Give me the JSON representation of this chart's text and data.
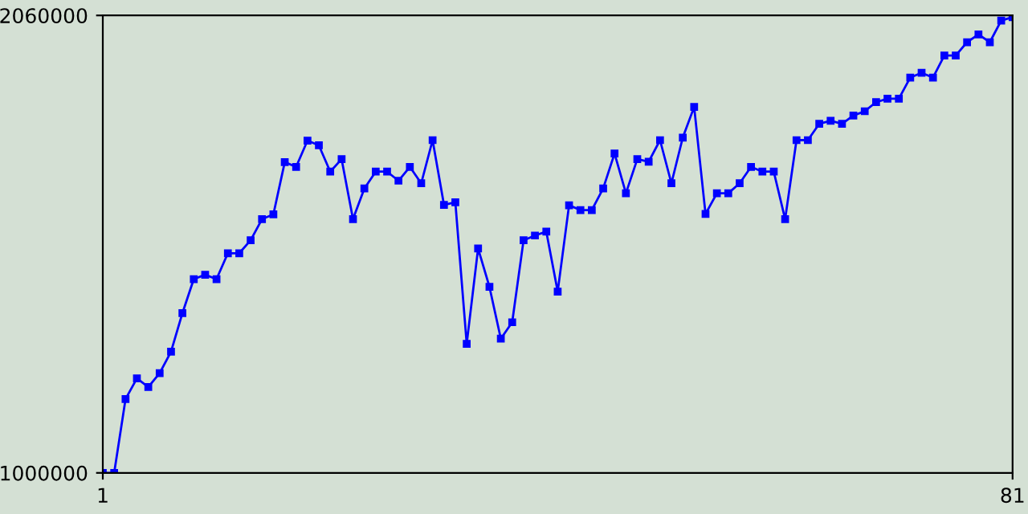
{
  "chart_data": {
    "type": "line",
    "x": [
      1,
      2,
      3,
      4,
      5,
      6,
      7,
      8,
      9,
      10,
      11,
      12,
      13,
      14,
      15,
      16,
      17,
      18,
      19,
      20,
      21,
      22,
      23,
      24,
      25,
      26,
      27,
      28,
      29,
      30,
      31,
      32,
      33,
      34,
      35,
      36,
      37,
      38,
      39,
      40,
      41,
      42,
      43,
      44,
      45,
      46,
      47,
      48,
      49,
      50,
      51,
      52,
      53,
      54,
      55,
      56,
      57,
      58,
      59,
      60,
      61,
      62,
      63,
      64,
      65,
      66,
      67,
      68,
      69,
      70,
      71,
      72,
      73,
      74,
      75,
      76,
      77,
      78,
      79,
      80,
      81
    ],
    "series": [
      {
        "color": "#0000ff",
        "values": [
          1000000,
          1000000,
          1171000,
          1219000,
          1199000,
          1231000,
          1281000,
          1370000,
          1449000,
          1459000,
          1449000,
          1509000,
          1509000,
          1539000,
          1588000,
          1599000,
          1720000,
          1709000,
          1770000,
          1759000,
          1698000,
          1727000,
          1588000,
          1659000,
          1698000,
          1698000,
          1677000,
          1709000,
          1671000,
          1771000,
          1621000,
          1627000,
          1299000,
          1520000,
          1431000,
          1311000,
          1349000,
          1539000,
          1550000,
          1559000,
          1420000,
          1620000,
          1609000,
          1609000,
          1659000,
          1740000,
          1648000,
          1727000,
          1721000,
          1771000,
          1671000,
          1777000,
          1848000,
          1600000,
          1648000,
          1648000,
          1671000,
          1709000,
          1698000,
          1698000,
          1588000,
          1771000,
          1771000,
          1809000,
          1816000,
          1809000,
          1828000,
          1838000,
          1859000,
          1867000,
          1867000,
          1916000,
          1927000,
          1916000,
          1967000,
          1967000,
          1998000,
          2016000,
          1998000,
          2048000,
          2056000
        ]
      }
    ],
    "xlim": [
      1,
      81
    ],
    "ylim": [
      1000000,
      2060000
    ],
    "xticks": [
      1,
      81
    ],
    "yticks": [
      1000000,
      2060000
    ],
    "marker": "square",
    "line_style": "solid",
    "grid": false,
    "legend": false
  }
}
